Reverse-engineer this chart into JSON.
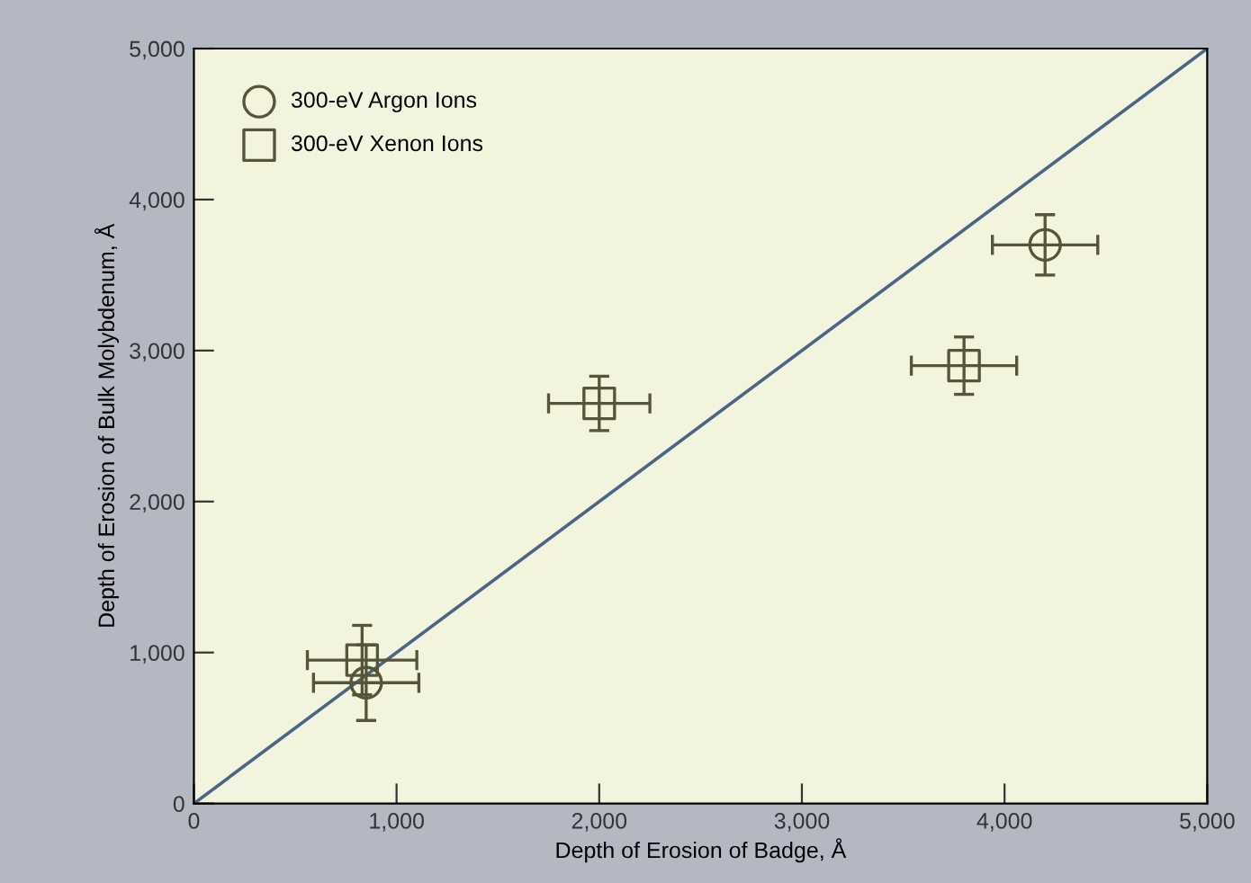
{
  "chart_data": {
    "type": "scatter",
    "xlabel": "Depth of Erosion of Badge, Å",
    "ylabel": "Depth of Erosion of Bulk Molybdenum, Å",
    "xlim": [
      0,
      5000
    ],
    "ylim": [
      0,
      5000
    ],
    "xticks": [
      {
        "value": 0,
        "label": "0"
      },
      {
        "value": 1000,
        "label": "1,000"
      },
      {
        "value": 2000,
        "label": "2,000"
      },
      {
        "value": 3000,
        "label": "3,000"
      },
      {
        "value": 4000,
        "label": "4,000"
      },
      {
        "value": 5000,
        "label": "5,000"
      }
    ],
    "yticks": [
      {
        "value": 0,
        "label": "0"
      },
      {
        "value": 1000,
        "label": "1,000"
      },
      {
        "value": 2000,
        "label": "2,000"
      },
      {
        "value": 3000,
        "label": "3,000"
      },
      {
        "value": 4000,
        "label": "4,000"
      },
      {
        "value": 5000,
        "label": "5,000"
      }
    ],
    "grid": false,
    "legend": "top left",
    "series": [
      {
        "name": "300-eV Argon Ions",
        "marker": "circle",
        "color": "#55553a",
        "x": [
          850,
          4200
        ],
        "values": [
          800,
          3700
        ],
        "errors": [
          250,
          200
        ],
        "xerrors": [
          260,
          260
        ]
      },
      {
        "name": "300-eV Xenon Ions",
        "marker": "square",
        "color": "#55553a",
        "x": [
          830,
          2000,
          3800
        ],
        "values": [
          950,
          2650,
          2900
        ],
        "errors": [
          230,
          180,
          190
        ],
        "xerrors": [
          270,
          250,
          260
        ]
      },
      {
        "type": "line",
        "color": "#4a6585",
        "x": [
          0,
          5000
        ],
        "values": [
          0,
          5000
        ],
        "marker": "none",
        "line_style": "solid"
      }
    ]
  }
}
